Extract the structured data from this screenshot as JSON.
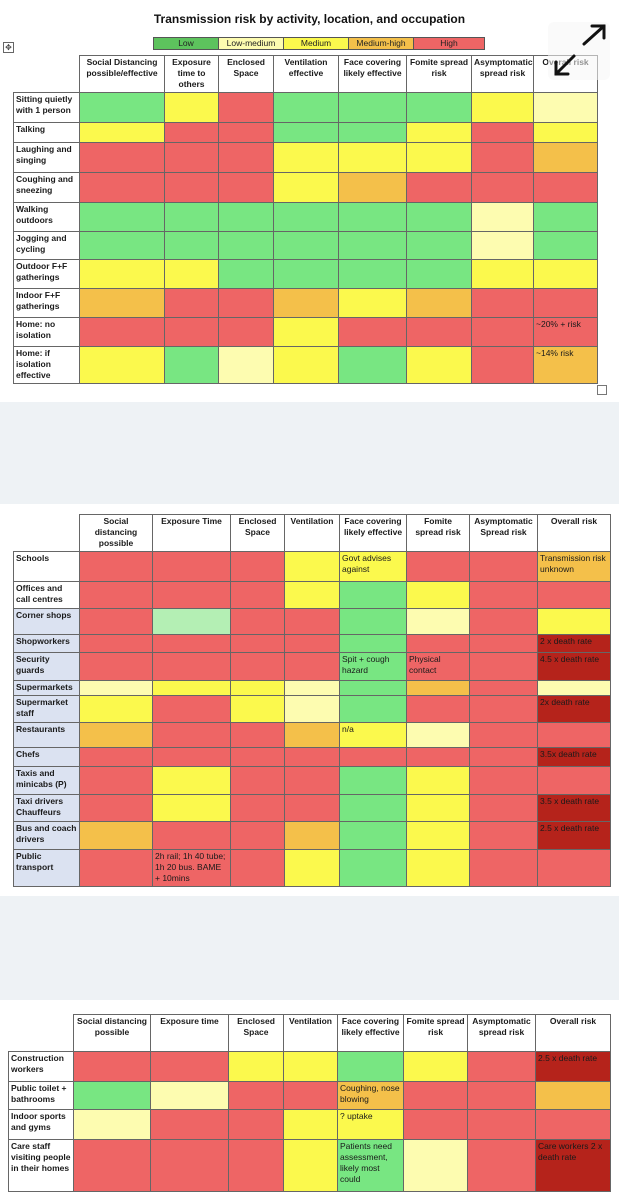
{
  "colors": {
    "G": "#78e682",
    "LG": "#b4efb4",
    "LM": "#fdfcb0",
    "Y": "#fbf94d",
    "O": "#f4c04a",
    "R": "#ee6565",
    "D": "#b5231b",
    "W": "#ffffff"
  },
  "title": "Transmission risk by activity, location, and occupation",
  "legend": [
    {
      "label": "Low",
      "color": "#5dc35d"
    },
    {
      "label": "Low-medium",
      "color": "#fdfcb0"
    },
    {
      "label": "Medium",
      "color": "#fbf94d"
    },
    {
      "label": "Medium-high",
      "color": "#f4c04a"
    },
    {
      "label": "High",
      "color": "#ee6565"
    }
  ],
  "icons": {
    "move_handle": "table-move-icon",
    "expand": "expand-arrows-icon"
  },
  "table1": {
    "headers": [
      "Social Distancing possible/effective",
      "Exposure time to others",
      "Enclosed Space",
      "Ventilation effective",
      "Face covering likely effective",
      "Fomite spread risk",
      "Asymptomatic spread risk",
      "Overall risk"
    ],
    "rows": [
      {
        "label": "Sitting quietly with 1 person",
        "cells": [
          [
            "G",
            ""
          ],
          [
            "Y",
            ""
          ],
          [
            "R",
            ""
          ],
          [
            "G",
            ""
          ],
          [
            "G",
            ""
          ],
          [
            "G",
            ""
          ],
          [
            "Y",
            ""
          ],
          [
            "LM",
            ""
          ]
        ]
      },
      {
        "label": "Talking",
        "cells": [
          [
            "Y",
            ""
          ],
          [
            "R",
            ""
          ],
          [
            "R",
            ""
          ],
          [
            "G",
            ""
          ],
          [
            "G",
            ""
          ],
          [
            "Y",
            ""
          ],
          [
            "R",
            ""
          ],
          [
            "Y",
            ""
          ]
        ]
      },
      {
        "label": "Laughing and singing",
        "cells": [
          [
            "R",
            ""
          ],
          [
            "R",
            ""
          ],
          [
            "R",
            ""
          ],
          [
            "Y",
            ""
          ],
          [
            "Y",
            ""
          ],
          [
            "Y",
            ""
          ],
          [
            "R",
            ""
          ],
          [
            "O",
            ""
          ]
        ]
      },
      {
        "label": "Coughing and sneezing",
        "cells": [
          [
            "R",
            ""
          ],
          [
            "R",
            ""
          ],
          [
            "R",
            ""
          ],
          [
            "Y",
            ""
          ],
          [
            "O",
            ""
          ],
          [
            "R",
            ""
          ],
          [
            "R",
            ""
          ],
          [
            "R",
            ""
          ]
        ]
      },
      {
        "label": "Walking outdoors",
        "cells": [
          [
            "G",
            ""
          ],
          [
            "G",
            ""
          ],
          [
            "G",
            ""
          ],
          [
            "G",
            ""
          ],
          [
            "G",
            ""
          ],
          [
            "G",
            ""
          ],
          [
            "LM",
            ""
          ],
          [
            "G",
            ""
          ]
        ]
      },
      {
        "label": "Jogging and cycling",
        "cells": [
          [
            "G",
            ""
          ],
          [
            "G",
            ""
          ],
          [
            "G",
            ""
          ],
          [
            "G",
            ""
          ],
          [
            "G",
            ""
          ],
          [
            "G",
            ""
          ],
          [
            "LM",
            ""
          ],
          [
            "G",
            ""
          ]
        ]
      },
      {
        "label": "Outdoor F+F gatherings",
        "cells": [
          [
            "Y",
            ""
          ],
          [
            "Y",
            ""
          ],
          [
            "G",
            ""
          ],
          [
            "G",
            ""
          ],
          [
            "G",
            ""
          ],
          [
            "G",
            ""
          ],
          [
            "Y",
            ""
          ],
          [
            "Y",
            ""
          ]
        ]
      },
      {
        "label": "Indoor F+F gatherings",
        "cells": [
          [
            "O",
            ""
          ],
          [
            "R",
            ""
          ],
          [
            "R",
            ""
          ],
          [
            "O",
            ""
          ],
          [
            "Y",
            ""
          ],
          [
            "O",
            ""
          ],
          [
            "R",
            ""
          ],
          [
            "R",
            ""
          ]
        ]
      },
      {
        "label": "Home: no isolation",
        "cells": [
          [
            "R",
            ""
          ],
          [
            "R",
            ""
          ],
          [
            "R",
            ""
          ],
          [
            "Y",
            ""
          ],
          [
            "R",
            ""
          ],
          [
            "R",
            ""
          ],
          [
            "R",
            ""
          ],
          [
            "R",
            "~20% + risk"
          ]
        ]
      },
      {
        "label": "Home: if isolation effective",
        "cells": [
          [
            "Y",
            ""
          ],
          [
            "G",
            ""
          ],
          [
            "LM",
            ""
          ],
          [
            "Y",
            ""
          ],
          [
            "G",
            ""
          ],
          [
            "Y",
            ""
          ],
          [
            "R",
            ""
          ],
          [
            "O",
            "~14% risk"
          ]
        ]
      }
    ]
  },
  "table2": {
    "headers": [
      "Social distancing possible",
      "Exposure Time",
      "Enclosed Space",
      "Ventilation",
      "Face covering likely effective",
      "Fomite spread risk",
      "Asymptomatic Spread risk",
      "Overall risk"
    ],
    "rows": [
      {
        "label": "Schools",
        "cells": [
          [
            "R",
            ""
          ],
          [
            "R",
            ""
          ],
          [
            "R",
            ""
          ],
          [
            "Y",
            ""
          ],
          [
            "Y",
            "Govt advises against"
          ],
          [
            "R",
            ""
          ],
          [
            "R",
            ""
          ],
          [
            "O",
            "Transmission risk unknown"
          ]
        ]
      },
      {
        "label": "Offices and call centres",
        "cells": [
          [
            "R",
            ""
          ],
          [
            "R",
            ""
          ],
          [
            "R",
            ""
          ],
          [
            "Y",
            ""
          ],
          [
            "G",
            ""
          ],
          [
            "Y",
            ""
          ],
          [
            "R",
            ""
          ],
          [
            "R",
            ""
          ]
        ]
      },
      {
        "label": "Corner shops",
        "cells": [
          [
            "R",
            ""
          ],
          [
            "LG",
            ""
          ],
          [
            "R",
            ""
          ],
          [
            "R",
            ""
          ],
          [
            "G",
            ""
          ],
          [
            "LM",
            ""
          ],
          [
            "R",
            ""
          ],
          [
            "Y",
            ""
          ]
        ]
      },
      {
        "label": "Shopworkers",
        "cells": [
          [
            "R",
            ""
          ],
          [
            "R",
            ""
          ],
          [
            "R",
            ""
          ],
          [
            "R",
            ""
          ],
          [
            "G",
            ""
          ],
          [
            "R",
            ""
          ],
          [
            "R",
            ""
          ],
          [
            "D",
            "2 x death rate"
          ]
        ]
      },
      {
        "label": "Security guards",
        "cells": [
          [
            "R",
            ""
          ],
          [
            "R",
            ""
          ],
          [
            "R",
            ""
          ],
          [
            "R",
            ""
          ],
          [
            "G",
            "Spit + cough hazard"
          ],
          [
            "R",
            "Physical contact"
          ],
          [
            "R",
            ""
          ],
          [
            "D",
            "4.5 x death rate"
          ]
        ]
      },
      {
        "label": "Supermarkets",
        "cells": [
          [
            "LM",
            ""
          ],
          [
            "Y",
            ""
          ],
          [
            "Y",
            ""
          ],
          [
            "LM",
            ""
          ],
          [
            "G",
            ""
          ],
          [
            "O",
            ""
          ],
          [
            "R",
            ""
          ],
          [
            "LM",
            ""
          ]
        ]
      },
      {
        "label": "Supermarket staff",
        "cells": [
          [
            "Y",
            ""
          ],
          [
            "R",
            ""
          ],
          [
            "Y",
            ""
          ],
          [
            "LM",
            ""
          ],
          [
            "G",
            ""
          ],
          [
            "R",
            ""
          ],
          [
            "R",
            ""
          ],
          [
            "D",
            "2x death rate"
          ]
        ]
      },
      {
        "label": "Restaurants",
        "cells": [
          [
            "O",
            ""
          ],
          [
            "R",
            ""
          ],
          [
            "R",
            ""
          ],
          [
            "O",
            ""
          ],
          [
            "Y",
            "n/a"
          ],
          [
            "LM",
            ""
          ],
          [
            "R",
            ""
          ],
          [
            "R",
            ""
          ]
        ]
      },
      {
        "label": "Chefs",
        "cells": [
          [
            "R",
            ""
          ],
          [
            "R",
            ""
          ],
          [
            "R",
            ""
          ],
          [
            "R",
            ""
          ],
          [
            "R",
            ""
          ],
          [
            "R",
            ""
          ],
          [
            "R",
            ""
          ],
          [
            "D",
            "3.5x death rate"
          ]
        ]
      },
      {
        "label": "Taxis and minicabs (P)",
        "cells": [
          [
            "R",
            ""
          ],
          [
            "Y",
            ""
          ],
          [
            "R",
            ""
          ],
          [
            "R",
            ""
          ],
          [
            "G",
            ""
          ],
          [
            "Y",
            ""
          ],
          [
            "R",
            ""
          ],
          [
            "R",
            ""
          ]
        ]
      },
      {
        "label": "Taxi drivers Chauffeurs",
        "cells": [
          [
            "R",
            ""
          ],
          [
            "Y",
            ""
          ],
          [
            "R",
            ""
          ],
          [
            "R",
            ""
          ],
          [
            "G",
            ""
          ],
          [
            "Y",
            ""
          ],
          [
            "R",
            ""
          ],
          [
            "D",
            "3.5 x death rate"
          ]
        ]
      },
      {
        "label": "Bus and coach drivers",
        "cells": [
          [
            "O",
            ""
          ],
          [
            "R",
            ""
          ],
          [
            "R",
            ""
          ],
          [
            "O",
            ""
          ],
          [
            "G",
            ""
          ],
          [
            "Y",
            ""
          ],
          [
            "R",
            ""
          ],
          [
            "D",
            "2.5 x death rate"
          ]
        ]
      },
      {
        "label": "Public transport",
        "cells": [
          [
            "R",
            ""
          ],
          [
            "R",
            "2h rail; 1h 40 tube; 1h 20 bus. BAME + 10mins"
          ],
          [
            "R",
            ""
          ],
          [
            "Y",
            ""
          ],
          [
            "G",
            ""
          ],
          [
            "Y",
            ""
          ],
          [
            "R",
            ""
          ],
          [
            "R",
            ""
          ]
        ]
      }
    ]
  },
  "table3": {
    "headers": [
      "Social distancing possible",
      "Exposure time",
      "Enclosed Space",
      "Ventilation",
      "Face covering likely effective",
      "Fomite spread risk",
      "Asymptomatic spread risk",
      "Overall risk"
    ],
    "rows": [
      {
        "label": "Construction workers",
        "cells": [
          [
            "R",
            ""
          ],
          [
            "R",
            ""
          ],
          [
            "Y",
            ""
          ],
          [
            "Y",
            ""
          ],
          [
            "G",
            ""
          ],
          [
            "Y",
            ""
          ],
          [
            "R",
            ""
          ],
          [
            "D",
            "2.5 x death rate"
          ]
        ]
      },
      {
        "label": "Public toilet + bathrooms",
        "cells": [
          [
            "G",
            ""
          ],
          [
            "LM",
            ""
          ],
          [
            "R",
            ""
          ],
          [
            "R",
            ""
          ],
          [
            "O",
            "Coughing, nose blowing"
          ],
          [
            "R",
            ""
          ],
          [
            "R",
            ""
          ],
          [
            "O",
            ""
          ]
        ]
      },
      {
        "label": "Indoor sports and gyms",
        "cells": [
          [
            "LM",
            ""
          ],
          [
            "R",
            ""
          ],
          [
            "R",
            ""
          ],
          [
            "Y",
            ""
          ],
          [
            "Y",
            "? uptake"
          ],
          [
            "R",
            ""
          ],
          [
            "R",
            ""
          ],
          [
            "R",
            ""
          ]
        ]
      },
      {
        "label": "Care staff visiting people in their homes",
        "cells": [
          [
            "R",
            ""
          ],
          [
            "R",
            ""
          ],
          [
            "R",
            ""
          ],
          [
            "Y",
            ""
          ],
          [
            "G",
            "Patients need assessment, likely most could"
          ],
          [
            "LM",
            ""
          ],
          [
            "R",
            ""
          ],
          [
            "D",
            "Care workers 2 x death rate"
          ]
        ]
      }
    ]
  }
}
